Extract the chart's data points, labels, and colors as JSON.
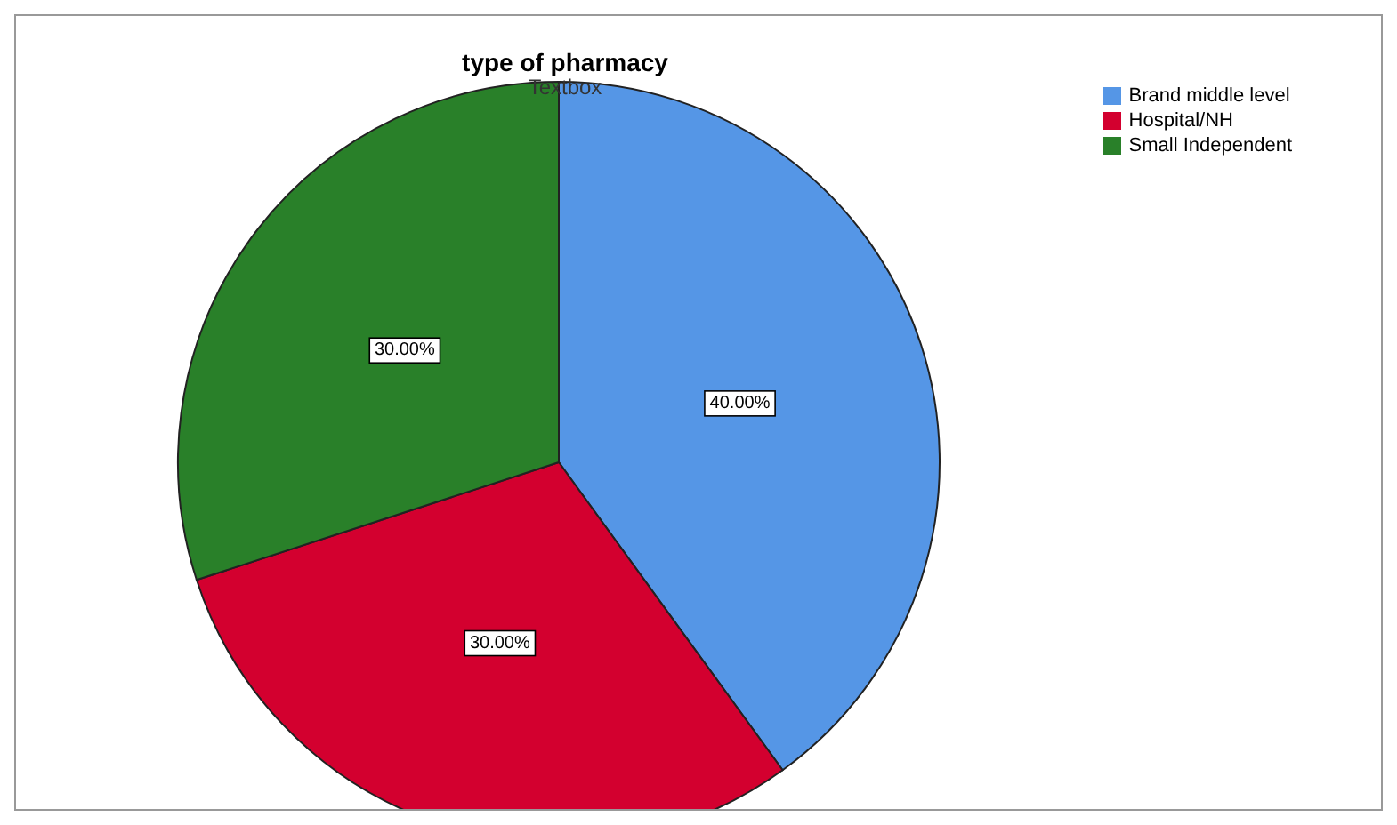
{
  "chart_data": {
    "type": "pie",
    "title": "type of pharmacy",
    "subtitle": "Textbox",
    "categories": [
      "Brand middle level",
      "Hospital/NH",
      "Small Independent"
    ],
    "values": [
      40,
      30,
      30
    ],
    "value_labels": [
      "40.00%",
      "30.00%",
      "30.00%"
    ],
    "colors": [
      "#5596e6",
      "#d3002f",
      "#298029"
    ],
    "legend": "top right"
  }
}
